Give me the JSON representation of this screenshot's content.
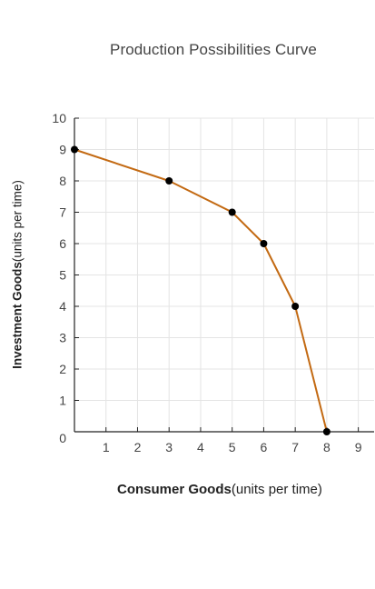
{
  "chart_data": {
    "type": "line",
    "title": "Production Possibilities Curve",
    "xlabel_bold": "Consumer Goods",
    "xlabel_rest": "(units per time)",
    "ylabel_bold": "Investment Goods",
    "ylabel_rest": "(units per time)",
    "xlim": [
      0,
      9.5
    ],
    "ylim": [
      0,
      10
    ],
    "x_ticks": [
      1,
      2,
      3,
      4,
      5,
      6,
      7,
      8,
      9
    ],
    "y_ticks": [
      0,
      1,
      2,
      3,
      4,
      5,
      6,
      7,
      8,
      9,
      10
    ],
    "grid": true,
    "series": [
      {
        "x": [
          0,
          3,
          5,
          6,
          7,
          8
        ],
        "y": [
          9,
          8,
          7,
          6,
          4,
          0
        ],
        "line_color": "#C36A13",
        "marker_color": "#000000"
      }
    ]
  }
}
